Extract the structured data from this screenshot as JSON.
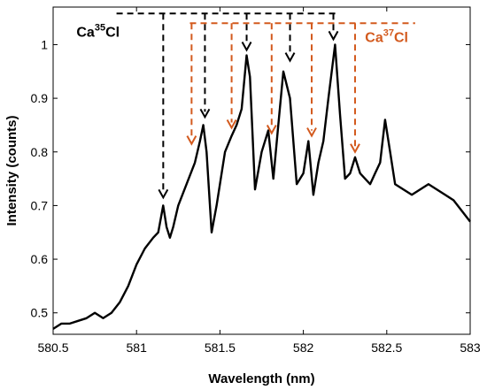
{
  "chart_data": {
    "type": "line",
    "xlabel": "Wavelength (nm)",
    "ylabel": "Intensity (counts)",
    "xlim": [
      580.5,
      583
    ],
    "ylim": [
      0.46,
      1.07
    ],
    "xticks": [
      580.5,
      581,
      581.5,
      582,
      582.5,
      583
    ],
    "xtick_labels": [
      "580.5",
      "581",
      "581.5",
      "582",
      "582.5",
      "583"
    ],
    "yticks": [
      0.5,
      0.6,
      0.7,
      0.8,
      0.9,
      1.0
    ],
    "ytick_labels": [
      "0.5",
      "0.6",
      "0.7",
      "0.8",
      "0.9",
      "1"
    ],
    "grid": false,
    "series": [
      {
        "color": "#000000",
        "x": [
          580.5,
          580.55,
          580.6,
          580.65,
          580.7,
          580.75,
          580.8,
          580.85,
          580.9,
          580.95,
          581.0,
          581.05,
          581.1,
          581.13,
          581.16,
          581.18,
          581.2,
          581.22,
          581.25,
          581.3,
          581.35,
          581.38,
          581.4,
          581.42,
          581.45,
          581.48,
          581.5,
          581.53,
          581.57,
          581.6,
          581.63,
          581.66,
          581.68,
          581.71,
          581.75,
          581.79,
          581.82,
          581.85,
          581.88,
          581.92,
          581.96,
          582.0,
          582.03,
          582.06,
          582.09,
          582.12,
          582.15,
          582.19,
          582.22,
          582.25,
          582.28,
          582.31,
          582.34,
          582.37,
          582.4,
          582.43,
          582.46,
          582.49,
          582.52,
          582.55,
          582.6,
          582.65,
          582.7,
          582.75,
          582.8,
          582.85,
          582.9,
          582.95,
          583.0
        ],
        "y": [
          0.47,
          0.48,
          0.48,
          0.485,
          0.49,
          0.5,
          0.49,
          0.5,
          0.52,
          0.55,
          0.59,
          0.62,
          0.64,
          0.65,
          0.7,
          0.66,
          0.64,
          0.66,
          0.7,
          0.74,
          0.78,
          0.82,
          0.85,
          0.8,
          0.65,
          0.7,
          0.74,
          0.8,
          0.83,
          0.85,
          0.88,
          0.98,
          0.94,
          0.73,
          0.8,
          0.84,
          0.75,
          0.85,
          0.95,
          0.9,
          0.74,
          0.76,
          0.82,
          0.72,
          0.78,
          0.82,
          0.9,
          1.0,
          0.87,
          0.75,
          0.76,
          0.79,
          0.76,
          0.75,
          0.74,
          0.76,
          0.78,
          0.86,
          0.8,
          0.74,
          0.73,
          0.72,
          0.73,
          0.74,
          0.73,
          0.72,
          0.71,
          0.69,
          0.67
        ]
      }
    ],
    "annotations": {
      "ca35": {
        "label_main": "Ca",
        "label_sup": "35",
        "label_end": "Cl",
        "color": "#000000",
        "bar_y": 1.058,
        "bar_x_range": [
          580.88,
          582.2
        ],
        "label_pos": [
          580.64,
          1.015
        ],
        "arrows": [
          {
            "x": 581.16,
            "y_tip": 0.715
          },
          {
            "x": 581.41,
            "y_tip": 0.865
          },
          {
            "x": 581.66,
            "y_tip": 0.99
          },
          {
            "x": 581.92,
            "y_tip": 0.97
          },
          {
            "x": 582.18,
            "y_tip": 1.01
          }
        ]
      },
      "ca37": {
        "label_main": "Ca",
        "label_sup": "37",
        "label_end": "Cl",
        "color": "#d35a1e",
        "bar_y": 1.04,
        "bar_x_range": [
          581.32,
          582.67
        ],
        "label_pos": [
          582.37,
          1.005
        ],
        "arrows": [
          {
            "x": 581.33,
            "y_tip": 0.815
          },
          {
            "x": 581.57,
            "y_tip": 0.845
          },
          {
            "x": 581.81,
            "y_tip": 0.835
          },
          {
            "x": 582.05,
            "y_tip": 0.83
          },
          {
            "x": 582.31,
            "y_tip": 0.8
          }
        ]
      }
    }
  }
}
